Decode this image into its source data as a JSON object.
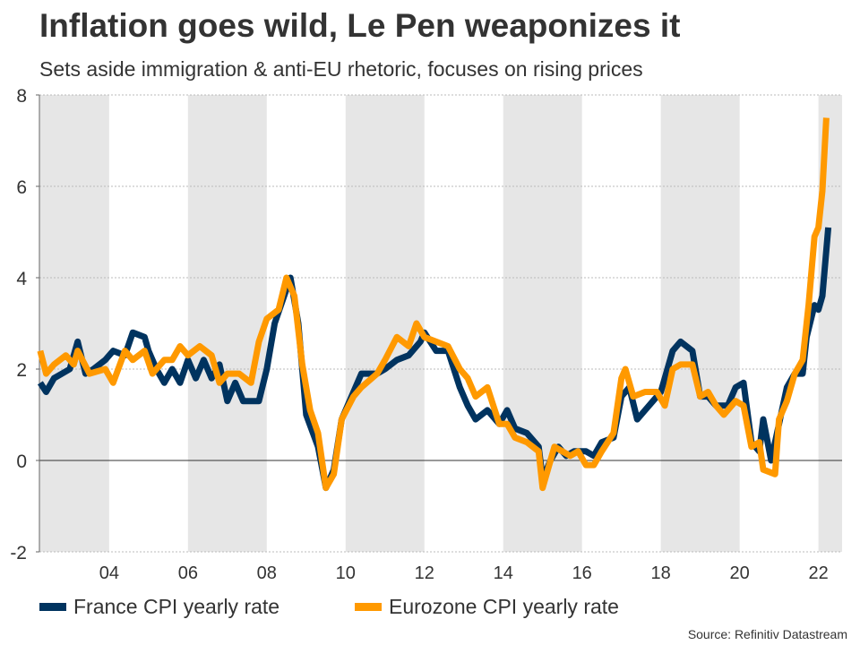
{
  "title": "Inflation goes wild, Le Pen weaponizes it",
  "subtitle": "Sets aside immigration & anti-EU rhetoric, focuses on rising prices",
  "source": "Source: Refinitiv Datastream",
  "chart_data": {
    "type": "line",
    "title": "Inflation goes wild, Le Pen weaponizes it",
    "xlabel": "",
    "ylabel": "",
    "xlim": [
      2002.23,
      2022.6
    ],
    "ylim": [
      -2,
      8
    ],
    "yticks": [
      -2,
      0,
      2,
      4,
      6,
      8
    ],
    "xticks": [
      2004,
      2006,
      2008,
      2010,
      2012,
      2014,
      2016,
      2018,
      2020,
      2022
    ],
    "xtick_labels": [
      "04",
      "06",
      "08",
      "10",
      "12",
      "14",
      "16",
      "18",
      "20",
      "22"
    ],
    "grid": "horizontal dashed",
    "shaded_bands_alternate_two_year": true,
    "legend": "bottom",
    "series": [
      {
        "name": "France CPI yearly rate",
        "color": "#00335f",
        "x": [
          2002.25,
          2002.4,
          2002.6,
          2002.8,
          2003.0,
          2003.2,
          2003.4,
          2003.6,
          2003.9,
          2004.1,
          2004.4,
          2004.6,
          2004.9,
          2005.0,
          2005.2,
          2005.4,
          2005.6,
          2005.8,
          2006.0,
          2006.2,
          2006.4,
          2006.6,
          2006.8,
          2007.0,
          2007.2,
          2007.4,
          2007.6,
          2007.8,
          2008.0,
          2008.2,
          2008.4,
          2008.6,
          2008.8,
          2009.0,
          2009.3,
          2009.5,
          2009.7,
          2009.9,
          2010.2,
          2010.4,
          2010.8,
          2011.0,
          2011.3,
          2011.6,
          2011.9,
          2012.0,
          2012.3,
          2012.6,
          2012.9,
          2013.1,
          2013.3,
          2013.6,
          2013.9,
          2014.1,
          2014.3,
          2014.6,
          2014.9,
          2015.0,
          2015.2,
          2015.4,
          2015.6,
          2015.8,
          2016.1,
          2016.3,
          2016.5,
          2016.8,
          2017.0,
          2017.2,
          2017.4,
          2017.6,
          2017.8,
          2018.0,
          2018.3,
          2018.5,
          2018.8,
          2019.0,
          2019.2,
          2019.4,
          2019.7,
          2019.9,
          2020.1,
          2020.3,
          2020.5,
          2020.6,
          2020.8,
          2021.0,
          2021.2,
          2021.4,
          2021.6,
          2021.7,
          2021.9,
          2022.0,
          2022.1,
          2022.25
        ],
        "y": [
          1.7,
          1.5,
          1.8,
          1.9,
          2.0,
          2.6,
          1.9,
          2.0,
          2.2,
          2.4,
          2.3,
          2.8,
          2.7,
          2.4,
          2.0,
          1.7,
          2.0,
          1.7,
          2.2,
          1.8,
          2.2,
          1.8,
          2.1,
          1.3,
          1.7,
          1.3,
          1.3,
          1.3,
          2.0,
          3.0,
          3.5,
          4.0,
          3.0,
          1.0,
          0.3,
          -0.6,
          -0.2,
          0.9,
          1.5,
          1.9,
          1.9,
          2.0,
          2.2,
          2.3,
          2.6,
          2.8,
          2.4,
          2.4,
          1.6,
          1.2,
          0.9,
          1.1,
          0.8,
          1.1,
          0.7,
          0.6,
          0.3,
          -0.4,
          0.0,
          0.3,
          0.1,
          0.2,
          0.2,
          0.1,
          0.4,
          0.5,
          1.4,
          1.6,
          0.9,
          1.1,
          1.3,
          1.5,
          2.4,
          2.6,
          2.4,
          1.4,
          1.4,
          1.2,
          1.2,
          1.6,
          1.7,
          0.4,
          0.2,
          0.9,
          0.0,
          0.8,
          1.6,
          1.9,
          1.9,
          2.7,
          3.4,
          3.3,
          3.6,
          5.1
        ]
      },
      {
        "name": "Eurozone CPI yearly rate",
        "color": "#ff9900",
        "x": [
          2002.25,
          2002.4,
          2002.6,
          2002.9,
          2003.1,
          2003.2,
          2003.5,
          2003.9,
          2004.1,
          2004.4,
          2004.6,
          2004.9,
          2005.1,
          2005.4,
          2005.6,
          2005.8,
          2006.0,
          2006.3,
          2006.6,
          2006.8,
          2007.0,
          2007.3,
          2007.6,
          2007.8,
          2008.0,
          2008.3,
          2008.5,
          2008.7,
          2008.9,
          2009.1,
          2009.3,
          2009.5,
          2009.7,
          2009.9,
          2010.2,
          2010.4,
          2010.8,
          2011.0,
          2011.3,
          2011.6,
          2011.8,
          2012.0,
          2012.3,
          2012.6,
          2012.9,
          2013.1,
          2013.3,
          2013.6,
          2013.9,
          2014.1,
          2014.3,
          2014.6,
          2014.9,
          2015.0,
          2015.3,
          2015.5,
          2015.7,
          2015.9,
          2016.1,
          2016.3,
          2016.5,
          2016.8,
          2017.0,
          2017.1,
          2017.3,
          2017.6,
          2017.9,
          2018.1,
          2018.3,
          2018.5,
          2018.8,
          2019.0,
          2019.2,
          2019.4,
          2019.6,
          2019.9,
          2020.1,
          2020.3,
          2020.5,
          2020.6,
          2020.9,
          2021.0,
          2021.2,
          2021.4,
          2021.6,
          2021.75,
          2021.9,
          2022.0,
          2022.1,
          2022.2
        ],
        "y": [
          2.4,
          1.9,
          2.1,
          2.3,
          2.1,
          2.4,
          1.9,
          2.0,
          1.7,
          2.4,
          2.2,
          2.4,
          1.9,
          2.2,
          2.2,
          2.5,
          2.3,
          2.5,
          2.3,
          1.7,
          1.9,
          1.9,
          1.7,
          2.6,
          3.1,
          3.3,
          4.0,
          3.6,
          2.1,
          1.1,
          0.6,
          -0.6,
          -0.3,
          0.9,
          1.4,
          1.6,
          1.9,
          2.2,
          2.7,
          2.5,
          3.0,
          2.7,
          2.6,
          2.5,
          2.0,
          1.8,
          1.4,
          1.6,
          0.8,
          0.8,
          0.5,
          0.4,
          0.2,
          -0.6,
          0.3,
          0.2,
          0.1,
          0.2,
          -0.1,
          -0.1,
          0.2,
          0.6,
          1.8,
          2.0,
          1.4,
          1.5,
          1.5,
          1.2,
          2.0,
          2.1,
          2.1,
          1.4,
          1.5,
          1.2,
          1.0,
          1.3,
          1.2,
          0.3,
          0.4,
          -0.2,
          -0.3,
          0.9,
          1.3,
          1.9,
          2.2,
          3.4,
          4.9,
          5.1,
          5.9,
          7.5
        ]
      }
    ]
  }
}
